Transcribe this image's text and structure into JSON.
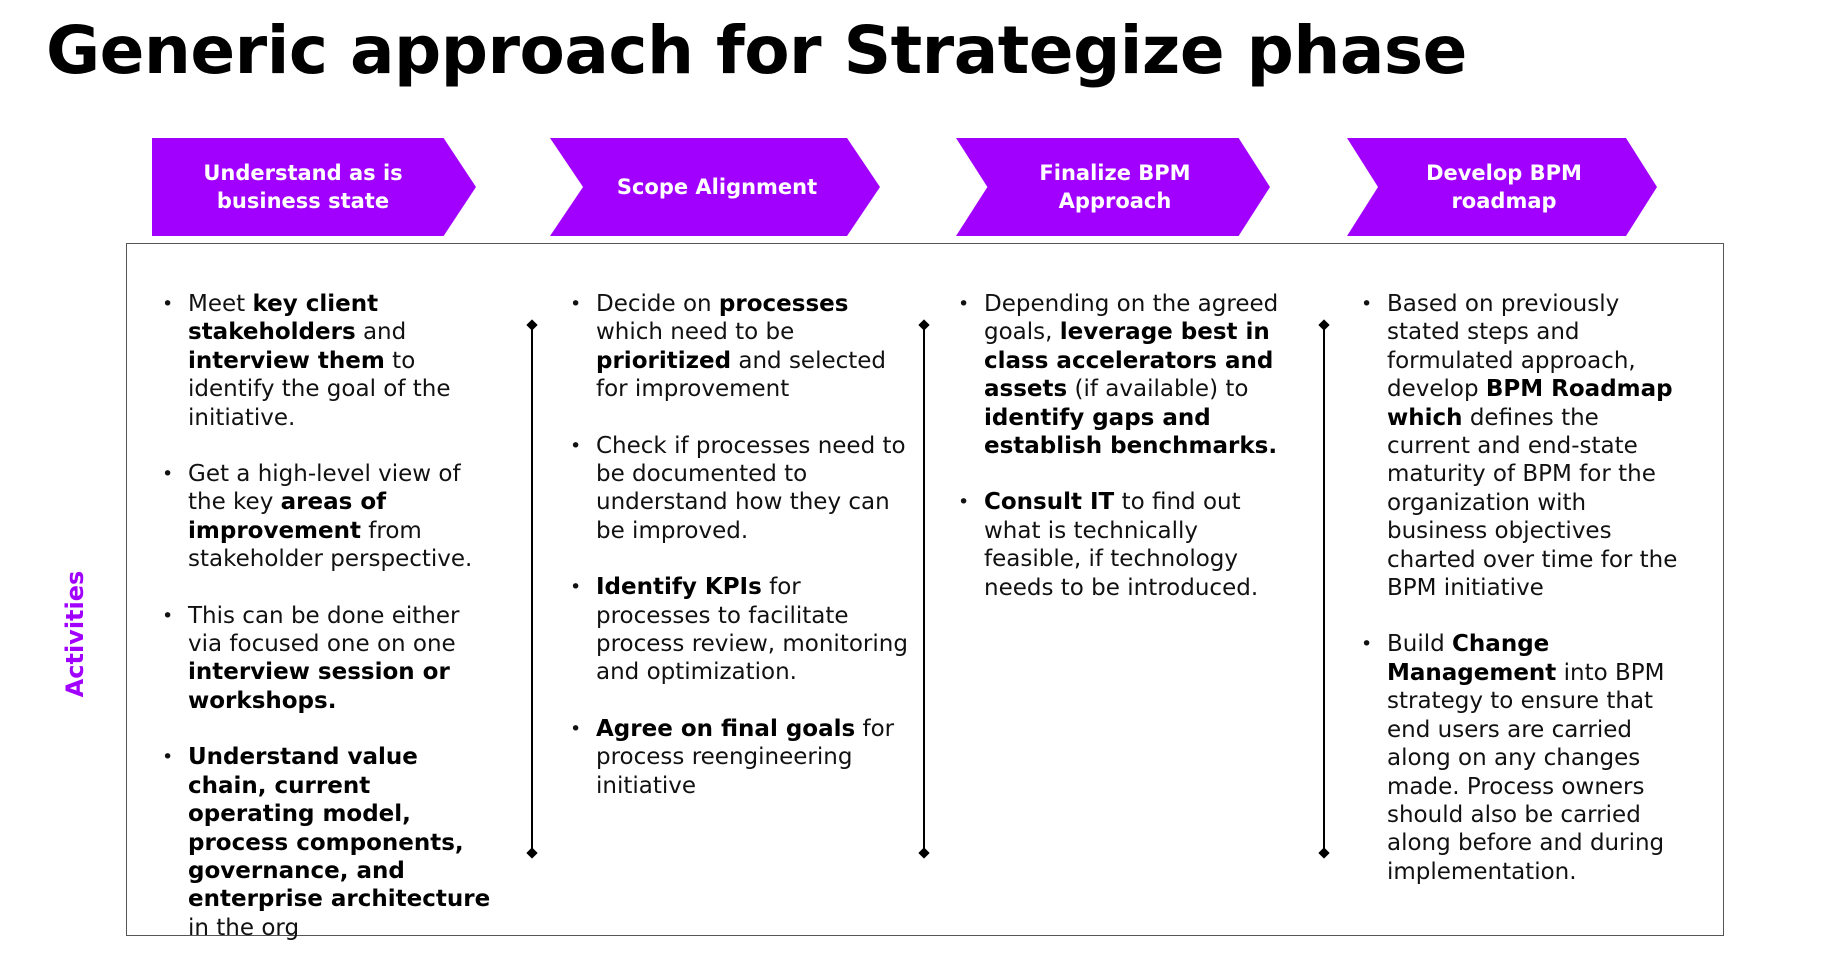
{
  "title": "Generic approach for Strategize phase",
  "side_label": "Activities",
  "colors": {
    "accent": "#a100ff",
    "frame_border": "#555555"
  },
  "phases": [
    {
      "label": "Understand as is\nbusiness state"
    },
    {
      "label": "Scope Alignment"
    },
    {
      "label": "Finalize BPM\nApproach"
    },
    {
      "label": "Develop BPM\nroadmap"
    }
  ],
  "columns": [
    {
      "bullets": [
        [
          {
            "t": "Meet "
          },
          {
            "t": "key client stakeholders",
            "b": true
          },
          {
            "t": " and "
          },
          {
            "t": "interview them",
            "b": true
          },
          {
            "t": " to identify the goal of the initiative."
          }
        ],
        [
          {
            "t": "Get a high-level view of the key "
          },
          {
            "t": "areas of improvement",
            "b": true
          },
          {
            "t": " from stakeholder perspective."
          }
        ],
        [
          {
            "t": "This can be done either via focused one on one "
          },
          {
            "t": "interview session or workshops.",
            "b": true
          }
        ],
        [
          {
            "t": "Understand value chain, current operating model, process components, governance, and enterprise architecture",
            "b": true
          },
          {
            "t": " in the org"
          }
        ]
      ]
    },
    {
      "bullets": [
        [
          {
            "t": "Decide on "
          },
          {
            "t": "processes",
            "b": true
          },
          {
            "t": " which need to be "
          },
          {
            "t": "prioritized",
            "b": true
          },
          {
            "t": " and selected for improvement"
          }
        ],
        [
          {
            "t": "Check if processes need to be documented to understand how they can be improved."
          }
        ],
        [
          {
            "t": "Identify KPIs",
            "b": true
          },
          {
            "t": " for processes to facilitate process review, monitoring and optimization."
          }
        ],
        [
          {
            "t": "Agree on final goals",
            "b": true
          },
          {
            "t": " for process reengineering initiative"
          }
        ]
      ]
    },
    {
      "bullets": [
        [
          {
            "t": "Depending on the agreed goals, "
          },
          {
            "t": "leverage best in class accelerators and assets",
            "b": true
          },
          {
            "t": " (if available) to "
          },
          {
            "t": "identify gaps and establish benchmarks.",
            "b": true
          }
        ],
        [
          {
            "t": "Consult IT",
            "b": true
          },
          {
            "t": " to find out what is technically feasible, if technology needs to be introduced."
          }
        ]
      ]
    },
    {
      "bullets": [
        [
          {
            "t": "Based on previously stated steps and formulated approach, develop "
          },
          {
            "t": "BPM Roadmap which",
            "b": true
          },
          {
            "t": " defines the current and end-state maturity of BPM for the organization with business objectives charted over time for the BPM initiative"
          }
        ],
        [
          {
            "t": "Build "
          },
          {
            "t": "Change Management",
            "b": true
          },
          {
            "t": " into BPM strategy to ensure that end users are carried along on any changes made. Process owners should also be carried along before and during implementation."
          }
        ]
      ]
    }
  ]
}
